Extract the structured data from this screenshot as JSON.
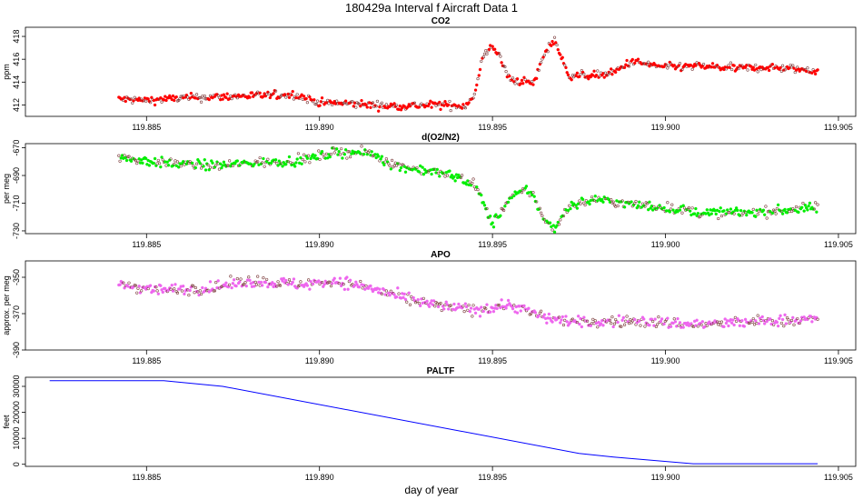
{
  "title": "180429a   Interval f Aircraft Data 1",
  "xlabel": "day of year",
  "chart_data": [
    {
      "type": "scatter",
      "title": "CO2",
      "ylabel": "ppm",
      "color": "#ff0000",
      "xlim": [
        119.8815,
        119.9055
      ],
      "ylim": [
        411.0,
        418.8
      ],
      "xticks": [
        119.885,
        119.89,
        119.895,
        119.9,
        119.905
      ],
      "xtick_labels": [
        "119.885",
        "119.890",
        "119.895",
        "119.900",
        "119.905"
      ],
      "yticks": [
        412,
        414,
        416,
        418
      ],
      "x_start": 119.8842,
      "x_end": 119.9044,
      "profile": [
        [
          119.8842,
          412.5
        ],
        [
          119.885,
          412.4
        ],
        [
          119.886,
          412.6
        ],
        [
          119.887,
          412.7
        ],
        [
          119.888,
          412.8
        ],
        [
          119.8893,
          412.9
        ],
        [
          119.89,
          412.2
        ],
        [
          119.891,
          412.1
        ],
        [
          119.892,
          411.9
        ],
        [
          119.8935,
          412.0
        ],
        [
          119.8942,
          411.9
        ],
        [
          119.8945,
          413.0
        ],
        [
          119.8947,
          416.0
        ],
        [
          119.895,
          417.3
        ],
        [
          119.8952,
          416.2
        ],
        [
          119.8955,
          414.2
        ],
        [
          119.896,
          414.0
        ],
        [
          119.8962,
          413.9
        ],
        [
          119.8965,
          416.5
        ],
        [
          119.8968,
          417.8
        ],
        [
          119.897,
          416.0
        ],
        [
          119.8972,
          414.6
        ],
        [
          119.898,
          414.6
        ],
        [
          119.8985,
          414.8
        ],
        [
          119.899,
          415.8
        ],
        [
          119.9,
          415.3
        ],
        [
          119.901,
          415.4
        ],
        [
          119.902,
          415.2
        ],
        [
          119.903,
          415.3
        ],
        [
          119.9044,
          415.0
        ]
      ],
      "noise": 0.45
    },
    {
      "type": "scatter",
      "title": "d(O2/N2)",
      "ylabel": "per meg",
      "color": "#00ee00",
      "xlim": [
        119.8815,
        119.9055
      ],
      "ylim": [
        -732,
        -667
      ],
      "xticks": [
        119.885,
        119.89,
        119.895,
        119.9,
        119.905
      ],
      "xtick_labels": [
        "119.885",
        "119.890",
        "119.895",
        "119.900",
        "119.905"
      ],
      "yticks": [
        -670,
        -690,
        -710,
        -730
      ],
      "x_start": 119.8842,
      "x_end": 119.9044,
      "profile": [
        [
          119.8842,
          -677
        ],
        [
          119.8855,
          -681
        ],
        [
          119.887,
          -683
        ],
        [
          119.888,
          -681
        ],
        [
          119.8895,
          -679
        ],
        [
          119.8905,
          -673
        ],
        [
          119.8915,
          -674
        ],
        [
          119.8922,
          -683
        ],
        [
          119.893,
          -686
        ],
        [
          119.894,
          -691
        ],
        [
          119.8945,
          -697
        ],
        [
          119.895,
          -725
        ],
        [
          119.8955,
          -707
        ],
        [
          119.896,
          -700
        ],
        [
          119.8962,
          -705
        ],
        [
          119.8965,
          -723
        ],
        [
          119.8968,
          -728
        ],
        [
          119.8972,
          -712
        ],
        [
          119.898,
          -707
        ],
        [
          119.899,
          -711
        ],
        [
          119.9,
          -713
        ],
        [
          119.901,
          -717
        ],
        [
          119.902,
          -717
        ],
        [
          119.903,
          -716
        ],
        [
          119.9044,
          -713
        ]
      ],
      "noise": 4.5
    },
    {
      "type": "scatter",
      "title": "APO",
      "ylabel": "approx. per meg",
      "color": "#ee66ee",
      "xlim": [
        119.8815,
        119.9055
      ],
      "ylim": [
        -390,
        -341
      ],
      "xticks": [
        119.885,
        119.89,
        119.895,
        119.9,
        119.905
      ],
      "xtick_labels": [
        "119.885",
        "119.890",
        "119.895",
        "119.900",
        "119.905"
      ],
      "yticks": [
        -350,
        -370,
        -390
      ],
      "x_start": 119.8842,
      "x_end": 119.9044,
      "profile": [
        [
          119.8842,
          -354
        ],
        [
          119.8855,
          -357
        ],
        [
          119.8868,
          -356
        ],
        [
          119.888,
          -352
        ],
        [
          119.8895,
          -354
        ],
        [
          119.8905,
          -352
        ],
        [
          119.8915,
          -356
        ],
        [
          119.8925,
          -362
        ],
        [
          119.8935,
          -366
        ],
        [
          119.8945,
          -368
        ],
        [
          119.8955,
          -365
        ],
        [
          119.8965,
          -372
        ],
        [
          119.8975,
          -375
        ],
        [
          119.899,
          -374
        ],
        [
          119.9,
          -375
        ],
        [
          119.901,
          -376
        ],
        [
          119.902,
          -375
        ],
        [
          119.903,
          -374
        ],
        [
          119.9044,
          -373
        ]
      ],
      "noise": 4.0
    },
    {
      "type": "line",
      "title": "PALTF",
      "ylabel": "feet",
      "color": "#0000ff",
      "xlim": [
        119.8815,
        119.9055
      ],
      "ylim": [
        -800,
        33500
      ],
      "xticks": [
        119.885,
        119.89,
        119.895,
        119.9,
        119.905
      ],
      "xtick_labels": [
        "119.885",
        "119.890",
        "119.895",
        "119.900",
        "119.905"
      ],
      "yticks": [
        0,
        10000,
        20000,
        30000
      ],
      "x": [
        119.8822,
        119.8855,
        119.8872,
        119.8975,
        119.8985,
        119.9008,
        119.9044
      ],
      "y": [
        32200,
        32200,
        30000,
        4200,
        2800,
        200,
        200
      ]
    }
  ]
}
